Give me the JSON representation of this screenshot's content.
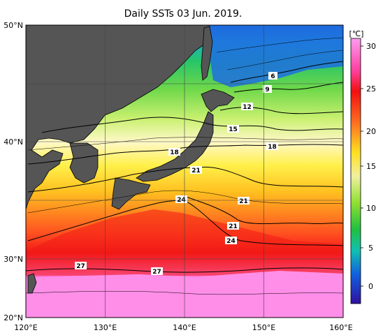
{
  "title": "Daily SSTs 03 Jun. 2019.",
  "unit": "[℃]",
  "lat_labels": [
    "50°N",
    "40°N",
    "30°N",
    "20°N"
  ],
  "lon_labels": [
    "120°E",
    "130°E",
    "140°E",
    "150°E",
    "160°E"
  ],
  "colorbar_ticks": [
    "30",
    "25",
    "20",
    "15",
    "10",
    "5",
    "0"
  ],
  "isotherm_labels": [
    "6",
    "9",
    "12",
    "15",
    "18",
    "18",
    "21",
    "21",
    "21",
    "24",
    "24",
    "27",
    "27"
  ],
  "colors": {
    "land": "#555555",
    "sea_warmest": "#ff88e8",
    "sea_cold": "#1b5fd8"
  }
}
